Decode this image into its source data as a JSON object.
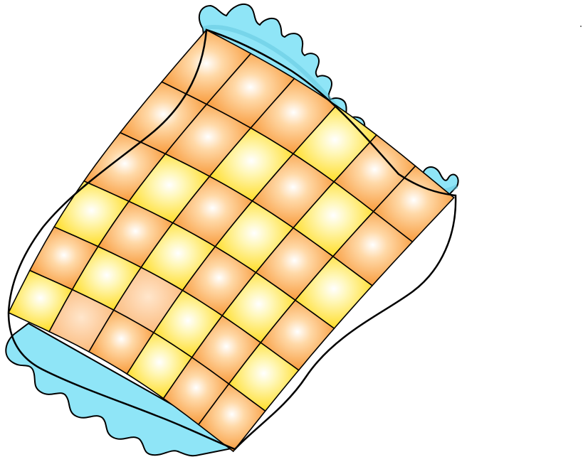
{
  "illustration": {
    "subject": "quilt-clipart",
    "grid": {
      "rows": 6,
      "cols": 6
    },
    "pattern": [
      [
        2,
        2,
        2,
        1,
        2,
        2
      ],
      [
        2,
        2,
        1,
        2,
        1,
        2
      ],
      [
        2,
        1,
        2,
        1,
        2,
        1
      ],
      [
        1,
        2,
        1,
        2,
        1,
        2
      ],
      [
        2,
        1,
        3,
        1,
        2,
        1
      ],
      [
        1,
        3,
        2,
        1,
        2,
        2
      ]
    ],
    "colors": {
      "orange": "#f7932e",
      "orange_light": "#ffd9a8",
      "yellow": "#ffd913",
      "yellow_light": "#fff7b8",
      "peach": "#fbb878",
      "ruffle": "#8fe5f7",
      "outline": "#000000",
      "background": "#ffffff"
    }
  }
}
